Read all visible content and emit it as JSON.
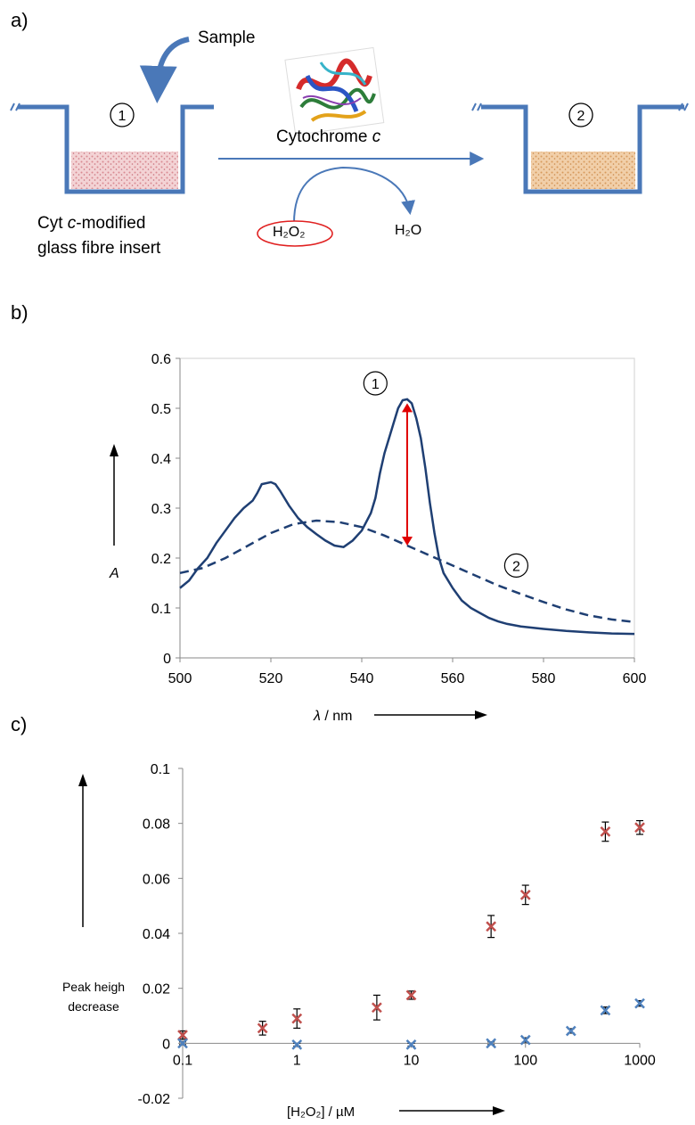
{
  "panels": {
    "a": "a)",
    "b": "b)",
    "c": "c)"
  },
  "scheme": {
    "sample_label": "Sample",
    "cyt_label": "Cytochrome",
    "cyt_italic": "c",
    "insert_label_line1_pre": "Cyt ",
    "insert_label_line1_italic": "c",
    "insert_label_line1_post": "-modified",
    "insert_label_line2": "glass fibre insert",
    "well1_marker": "1",
    "well2_marker": "2",
    "reactant": "H₂O₂",
    "product": "H₂O",
    "colors": {
      "well": "#4a78b8",
      "arrow": "#4a78b8",
      "insert1": "#e8b4b8",
      "insert2": "#e6b184",
      "reactant_ring": "#e02020"
    }
  },
  "chart_data": [
    {
      "type": "line",
      "panel": "b",
      "xlabel_italic": "λ",
      "xlabel_rest": " / nm",
      "ylabel": "A",
      "xlim": [
        500,
        600
      ],
      "ylim": [
        0,
        0.6
      ],
      "xticks": [
        "500",
        "520",
        "540",
        "560",
        "580",
        "600"
      ],
      "yticks": [
        "0",
        "0.1",
        "0.2",
        "0.3",
        "0.4",
        "0.5",
        "0.6"
      ],
      "grid": false,
      "series": [
        {
          "marker": "1",
          "style": "solid",
          "color": "#1f3f73",
          "x": [
            500,
            502,
            504,
            506,
            508,
            510,
            512,
            514,
            516,
            517,
            518,
            520,
            521,
            522,
            524,
            526,
            528,
            530,
            532,
            534,
            536,
            538,
            540,
            542,
            543,
            544,
            545,
            546,
            547,
            548,
            549,
            550,
            551,
            552,
            553,
            554,
            555,
            556,
            557,
            558,
            559,
            560,
            562,
            564,
            566,
            568,
            570,
            572,
            575,
            580,
            585,
            590,
            595,
            600
          ],
          "y": [
            0.14,
            0.155,
            0.18,
            0.2,
            0.23,
            0.255,
            0.28,
            0.3,
            0.315,
            0.33,
            0.348,
            0.352,
            0.348,
            0.335,
            0.305,
            0.28,
            0.262,
            0.248,
            0.235,
            0.225,
            0.222,
            0.235,
            0.255,
            0.29,
            0.32,
            0.37,
            0.41,
            0.44,
            0.47,
            0.5,
            0.516,
            0.518,
            0.51,
            0.48,
            0.44,
            0.38,
            0.31,
            0.25,
            0.2,
            0.17,
            0.155,
            0.14,
            0.115,
            0.1,
            0.09,
            0.08,
            0.073,
            0.068,
            0.063,
            0.058,
            0.054,
            0.051,
            0.049,
            0.048
          ]
        },
        {
          "marker": "2",
          "style": "dashed",
          "color": "#1f3f73",
          "x": [
            500,
            505,
            510,
            515,
            520,
            525,
            530,
            535,
            540,
            545,
            550,
            555,
            560,
            565,
            570,
            575,
            580,
            585,
            590,
            595,
            600
          ],
          "y": [
            0.17,
            0.18,
            0.2,
            0.225,
            0.25,
            0.268,
            0.275,
            0.272,
            0.262,
            0.245,
            0.225,
            0.205,
            0.185,
            0.165,
            0.145,
            0.128,
            0.112,
            0.097,
            0.085,
            0.077,
            0.072
          ]
        }
      ],
      "annotation": {
        "type": "double-arrow",
        "x": 550,
        "from": 0.225,
        "to": 0.51,
        "color": "#e00000"
      }
    },
    {
      "type": "scatter",
      "panel": "c",
      "xscale": "log",
      "xlabel": "[H₂O₂] / µM",
      "ylabel_line1": "Peak heigh",
      "ylabel_line2": "decrease",
      "xlim": [
        0.1,
        1000
      ],
      "ylim": [
        -0.02,
        0.1
      ],
      "xticks": [
        "0.1",
        "1",
        "10",
        "100",
        "1000"
      ],
      "yticks": [
        "-0.02",
        "0",
        "0.02",
        "0.04",
        "0.06",
        "0.08",
        "0.1"
      ],
      "grid": false,
      "series": [
        {
          "color": "#c0504d",
          "x": [
            0.1,
            0.5,
            1,
            5,
            10,
            50,
            100,
            500,
            1000
          ],
          "y": [
            0.003,
            0.0055,
            0.009,
            0.013,
            0.0175,
            0.0425,
            0.054,
            0.077,
            0.0785
          ],
          "err": [
            0.0015,
            0.0025,
            0.0035,
            0.0045,
            0.0015,
            0.004,
            0.0035,
            0.0035,
            0.0025
          ]
        },
        {
          "color": "#4f81bd",
          "x": [
            0.1,
            1,
            10,
            50,
            100,
            250,
            500,
            1000
          ],
          "y": [
            0.0,
            -0.0005,
            -0.0005,
            0.0,
            0.0012,
            0.0045,
            0.012,
            0.0145
          ],
          "err": [
            0.0005,
            0.0005,
            0.0005,
            0.0005,
            0.0008,
            0.0008,
            0.0012,
            0.001
          ]
        }
      ]
    }
  ]
}
